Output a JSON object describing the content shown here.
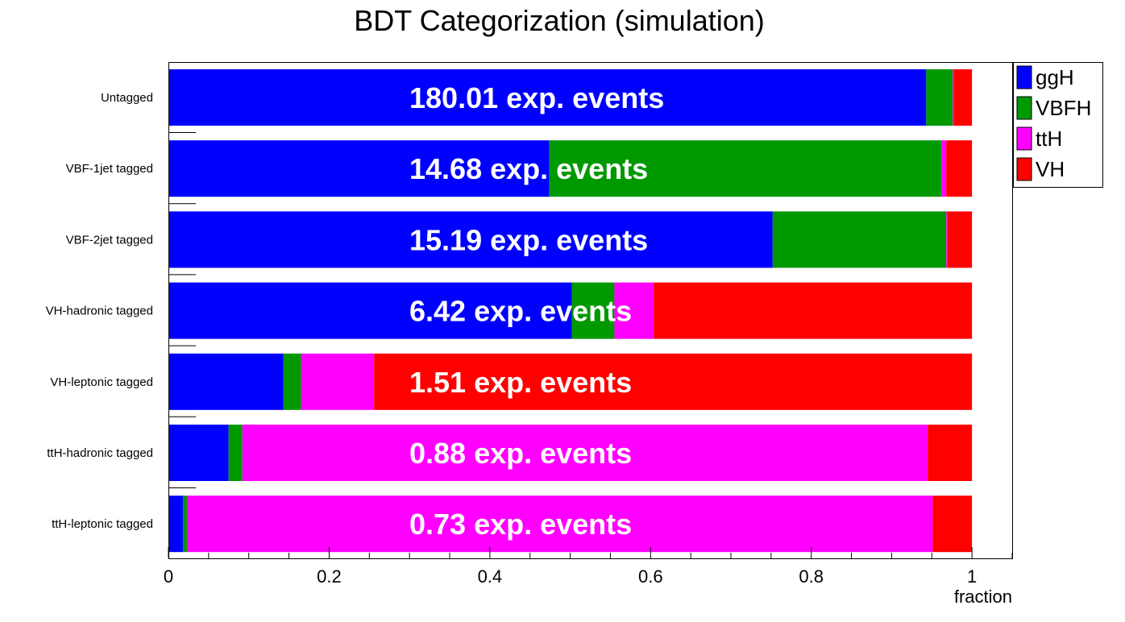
{
  "chart_data": {
    "type": "bar",
    "orientation": "horizontal",
    "stacked": true,
    "title": "BDT Categorization (simulation)",
    "xlabel": "fraction",
    "ylabel": "",
    "xlim": [
      0,
      1.05
    ],
    "xticks": [
      "0",
      "0.2",
      "0.4",
      "0.6",
      "0.8",
      "1"
    ],
    "grid": false,
    "legend_position": "top-right",
    "categories": [
      "Untagged",
      "VBF-1jet tagged",
      "VBF-2jet tagged",
      "VH-hadronic tagged",
      "VH-leptonic tagged",
      "ttH-hadronic tagged",
      "ttH-leptonic tagged"
    ],
    "annotations": [
      "180.01 exp. events",
      "14.68 exp. events",
      "15.19 exp. events",
      "6.42 exp. events",
      "1.51 exp. events",
      "0.88 exp. events",
      "0.73 exp. events"
    ],
    "series": [
      {
        "name": "ggH",
        "color": "#0000ff",
        "values": [
          0.943,
          0.474,
          0.752,
          0.502,
          0.143,
          0.075,
          0.018
        ]
      },
      {
        "name": "VBFH",
        "color": "#009900",
        "values": [
          0.033,
          0.488,
          0.216,
          0.053,
          0.022,
          0.017,
          0.005
        ]
      },
      {
        "name": "ttH",
        "color": "#ff00ff",
        "values": [
          0.001,
          0.006,
          0.001,
          0.049,
          0.091,
          0.853,
          0.928
        ]
      },
      {
        "name": "VH",
        "color": "#ff0000",
        "values": [
          0.023,
          0.032,
          0.031,
          0.396,
          0.744,
          0.055,
          0.049
        ]
      }
    ]
  }
}
